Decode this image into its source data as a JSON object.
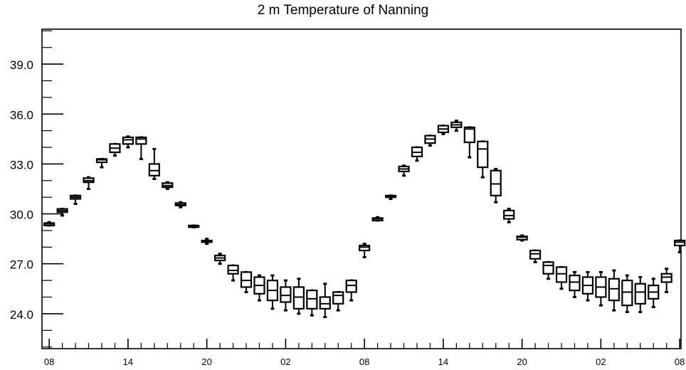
{
  "chart_data": {
    "type": "box",
    "title": "2 m Temperature of Nanning",
    "xlabel": "",
    "ylabel": "",
    "ylim": [
      21.9,
      41.1
    ],
    "yticks": [
      24.0,
      27.0,
      30.0,
      33.0,
      36.0,
      39.0
    ],
    "ytick_labels": [
      "24.0",
      "27.0",
      "30.0",
      "33.0",
      "36.0",
      "39.0"
    ],
    "xlim": [
      -0.55,
      48.1
    ],
    "xticks": [
      0,
      6,
      12,
      18,
      24,
      30,
      36,
      42,
      48
    ],
    "xtick_labels": [
      "08",
      "14",
      "20",
      "02",
      "08",
      "14",
      "20",
      "02",
      "08"
    ],
    "grid": false,
    "boxes": [
      {
        "hour": 0,
        "min": 29.3,
        "q1": 29.3,
        "median": 29.4,
        "q3": 29.45,
        "max": 29.5
      },
      {
        "hour": 1,
        "min": 29.9,
        "q1": 30.1,
        "median": 30.2,
        "q3": 30.3,
        "max": 30.3
      },
      {
        "hour": 2,
        "min": 30.6,
        "q1": 30.9,
        "median": 31.0,
        "q3": 31.1,
        "max": 31.1
      },
      {
        "hour": 3,
        "min": 31.5,
        "q1": 31.9,
        "median": 32.0,
        "q3": 32.15,
        "max": 32.2
      },
      {
        "hour": 4,
        "min": 32.8,
        "q1": 33.1,
        "median": 33.25,
        "q3": 33.3,
        "max": 33.3
      },
      {
        "hour": 5,
        "min": 33.5,
        "q1": 33.7,
        "median": 33.95,
        "q3": 34.2,
        "max": 34.2
      },
      {
        "hour": 6,
        "min": 34.0,
        "q1": 34.2,
        "median": 34.45,
        "q3": 34.6,
        "max": 34.65
      },
      {
        "hour": 7,
        "min": 33.3,
        "q1": 34.2,
        "median": 34.5,
        "q3": 34.6,
        "max": 34.6
      },
      {
        "hour": 8,
        "min": 32.1,
        "q1": 32.3,
        "median": 32.6,
        "q3": 33.0,
        "max": 33.9
      },
      {
        "hour": 9,
        "min": 31.5,
        "q1": 31.6,
        "median": 31.7,
        "q3": 31.85,
        "max": 31.9
      },
      {
        "hour": 10,
        "min": 30.4,
        "q1": 30.5,
        "median": 30.55,
        "q3": 30.65,
        "max": 30.7
      },
      {
        "hour": 11,
        "min": 29.2,
        "q1": 29.2,
        "median": 29.25,
        "q3": 29.3,
        "max": 29.3
      },
      {
        "hour": 12,
        "min": 28.2,
        "q1": 28.3,
        "median": 28.35,
        "q3": 28.4,
        "max": 28.5
      },
      {
        "hour": 13,
        "min": 27.0,
        "q1": 27.2,
        "median": 27.35,
        "q3": 27.5,
        "max": 27.6
      },
      {
        "hour": 14,
        "min": 26.0,
        "q1": 26.4,
        "median": 26.6,
        "q3": 26.9,
        "max": 26.9
      },
      {
        "hour": 15,
        "min": 25.3,
        "q1": 25.6,
        "median": 26.0,
        "q3": 26.5,
        "max": 26.5
      },
      {
        "hour": 16,
        "min": 24.8,
        "q1": 25.2,
        "median": 25.7,
        "q3": 26.2,
        "max": 26.3
      },
      {
        "hour": 17,
        "min": 24.3,
        "q1": 24.8,
        "median": 25.4,
        "q3": 26.0,
        "max": 26.3
      },
      {
        "hour": 18,
        "min": 24.2,
        "q1": 24.7,
        "median": 25.1,
        "q3": 25.6,
        "max": 26.0
      },
      {
        "hour": 19,
        "min": 24.0,
        "q1": 24.3,
        "median": 25.0,
        "q3": 25.6,
        "max": 26.1
      },
      {
        "hour": 20,
        "min": 23.9,
        "q1": 24.3,
        "median": 24.9,
        "q3": 25.4,
        "max": 25.4
      },
      {
        "hour": 21,
        "min": 23.8,
        "q1": 24.3,
        "median": 24.6,
        "q3": 25.0,
        "max": 25.8
      },
      {
        "hour": 22,
        "min": 24.2,
        "q1": 24.6,
        "median": 25.1,
        "q3": 25.3,
        "max": 25.3
      },
      {
        "hour": 23,
        "min": 24.8,
        "q1": 25.3,
        "median": 25.7,
        "q3": 26.0,
        "max": 26.0
      },
      {
        "hour": 24,
        "min": 27.4,
        "q1": 27.8,
        "median": 28.0,
        "q3": 28.1,
        "max": 28.2
      },
      {
        "hour": 25,
        "min": 29.6,
        "q1": 29.6,
        "median": 29.7,
        "q3": 29.75,
        "max": 29.8
      },
      {
        "hour": 26,
        "min": 30.9,
        "q1": 31.0,
        "median": 31.05,
        "q3": 31.1,
        "max": 31.1
      },
      {
        "hour": 27,
        "min": 32.3,
        "q1": 32.55,
        "median": 32.7,
        "q3": 32.85,
        "max": 32.9
      },
      {
        "hour": 28,
        "min": 33.2,
        "q1": 33.45,
        "median": 33.7,
        "q3": 34.0,
        "max": 34.0
      },
      {
        "hour": 29,
        "min": 34.1,
        "q1": 34.25,
        "median": 34.5,
        "q3": 34.7,
        "max": 34.7
      },
      {
        "hour": 30,
        "min": 34.8,
        "q1": 34.9,
        "median": 35.1,
        "q3": 35.3,
        "max": 35.3
      },
      {
        "hour": 31,
        "min": 35.0,
        "q1": 35.2,
        "median": 35.35,
        "q3": 35.5,
        "max": 35.6
      },
      {
        "hour": 32,
        "min": 33.4,
        "q1": 34.3,
        "median": 35.1,
        "q3": 35.2,
        "max": 35.2
      },
      {
        "hour": 33,
        "min": 32.2,
        "q1": 32.8,
        "median": 33.9,
        "q3": 34.35,
        "max": 34.35
      },
      {
        "hour": 34,
        "min": 30.7,
        "q1": 31.1,
        "median": 31.8,
        "q3": 32.6,
        "max": 32.7
      },
      {
        "hour": 35,
        "min": 29.5,
        "q1": 29.7,
        "median": 29.9,
        "q3": 30.2,
        "max": 30.3
      },
      {
        "hour": 36,
        "min": 28.4,
        "q1": 28.45,
        "median": 28.6,
        "q3": 28.65,
        "max": 28.7
      },
      {
        "hour": 37,
        "min": 27.1,
        "q1": 27.3,
        "median": 27.6,
        "q3": 27.8,
        "max": 27.8
      },
      {
        "hour": 38,
        "min": 26.1,
        "q1": 26.4,
        "median": 26.9,
        "q3": 27.1,
        "max": 27.1
      },
      {
        "hour": 39,
        "min": 25.5,
        "q1": 25.9,
        "median": 26.4,
        "q3": 26.8,
        "max": 26.8
      },
      {
        "hour": 40,
        "min": 25.0,
        "q1": 25.4,
        "median": 25.9,
        "q3": 26.3,
        "max": 26.5
      },
      {
        "hour": 41,
        "min": 24.8,
        "q1": 25.2,
        "median": 25.7,
        "q3": 26.2,
        "max": 26.5
      },
      {
        "hour": 42,
        "min": 24.5,
        "q1": 25.0,
        "median": 25.6,
        "q3": 26.2,
        "max": 26.5
      },
      {
        "hour": 43,
        "min": 24.2,
        "q1": 24.8,
        "median": 25.5,
        "q3": 26.1,
        "max": 26.6
      },
      {
        "hour": 44,
        "min": 24.1,
        "q1": 24.5,
        "median": 25.3,
        "q3": 26.0,
        "max": 26.3
      },
      {
        "hour": 45,
        "min": 24.1,
        "q1": 24.6,
        "median": 25.3,
        "q3": 25.8,
        "max": 26.2
      },
      {
        "hour": 46,
        "min": 24.4,
        "q1": 24.9,
        "median": 25.3,
        "q3": 25.7,
        "max": 26.1
      },
      {
        "hour": 47,
        "min": 25.3,
        "q1": 25.9,
        "median": 26.2,
        "q3": 26.4,
        "max": 26.7
      },
      {
        "hour": 48,
        "min": 27.7,
        "q1": 28.1,
        "median": 28.3,
        "q3": 28.4,
        "max": 28.4
      }
    ]
  }
}
